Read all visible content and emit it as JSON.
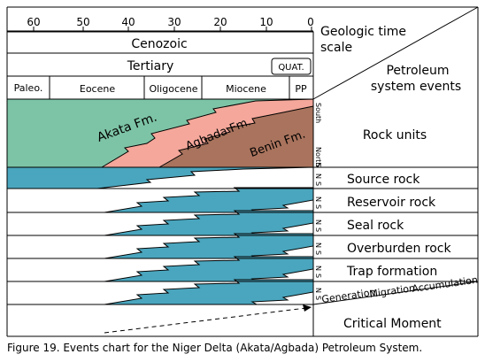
{
  "chart": {
    "time_scale_ticks": [
      "60",
      "50",
      "40",
      "30",
      "20",
      "10",
      "0"
    ],
    "header_right": [
      "Geologic time",
      "scale"
    ],
    "petroleum_header": [
      "Petroleum",
      "system events"
    ],
    "era": "Cenozoic",
    "period": "Tertiary",
    "quaternary": "QUAT.",
    "epochs": [
      "Paleo.",
      "Eocene",
      "Oligocene",
      "Miocene",
      "PP"
    ],
    "formations": [
      "Akata Fm.",
      "Agbada Fm.",
      "Benin Fm."
    ],
    "orientation_south": "South",
    "orientation_north": "North",
    "ns_letters": [
      "N",
      "S"
    ],
    "event_rows": [
      {
        "label": "Rock units"
      },
      {
        "label": "Source rock"
      },
      {
        "label": "Reservoir rock"
      },
      {
        "label": "Seal rock"
      },
      {
        "label": "Overburden rock"
      },
      {
        "label": "Trap formation"
      }
    ],
    "gen_mig_acc": [
      "Generation",
      "Migration",
      "Accumulation"
    ],
    "critical_moment": "Critical Moment",
    "colors": {
      "akata": "#7dc4a6",
      "agbada": "#f4a79a",
      "benin": "#a9735d",
      "event_fill": "#4aa6be"
    }
  },
  "caption": "Figure 19.  Events chart for the Niger Delta (Akata/Agbada) Petroleum System."
}
